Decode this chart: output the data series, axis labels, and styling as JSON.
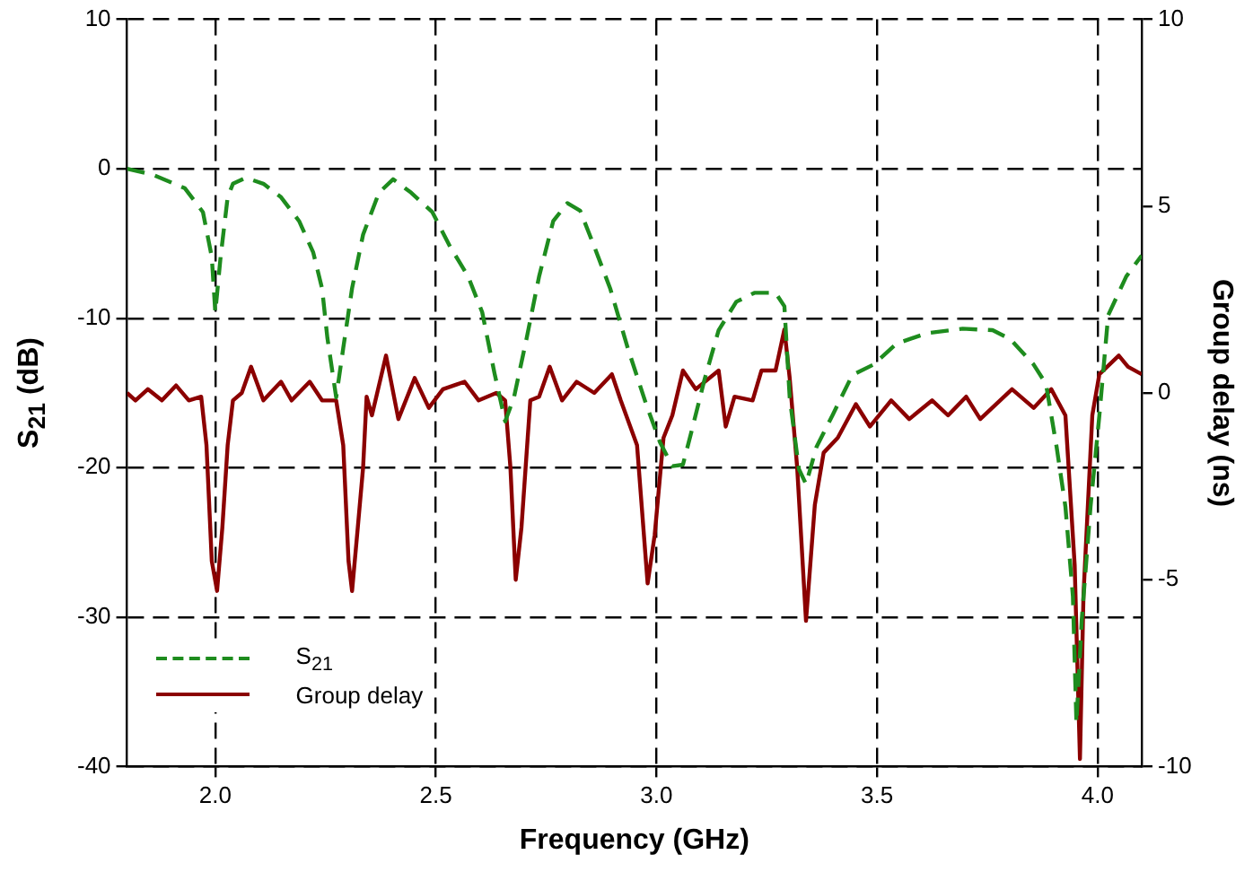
{
  "chart_data": {
    "type": "line",
    "xlabel": "Frequency (GHz)",
    "ylabel": "S$_{21}$ (dB)",
    "y2label": "Group delay (ns)",
    "xlim": [
      1.8,
      4.1
    ],
    "xticks": [
      {
        "value": 2,
        "label": "2.0"
      },
      {
        "value": 2.5,
        "label": "2.5"
      },
      {
        "value": 3,
        "label": "3.0"
      },
      {
        "value": 3.5,
        "label": "3.5"
      },
      {
        "value": 4,
        "label": "4.0"
      }
    ],
    "ylim": [
      -40,
      10
    ],
    "yticks": [
      -40,
      -30,
      -20,
      -10,
      0,
      10
    ],
    "y2lim": [
      -10,
      10
    ],
    "y2ticks": [
      -10,
      -5,
      0,
      5,
      10
    ],
    "grid": true,
    "legend": "bottom left",
    "marker": "none",
    "series": [
      {
        "name": "S$_{21}$",
        "color": "#1e8c1e",
        "line_style": "dashed",
        "x": [
          1.8,
          1.859,
          1.931,
          1.972,
          1.992,
          2.0,
          2.012,
          2.028,
          2.04,
          2.069,
          2.109,
          2.149,
          2.19,
          2.222,
          2.242,
          2.254,
          2.274,
          2.29,
          2.31,
          2.335,
          2.371,
          2.403,
          2.444,
          2.492,
          2.532,
          2.573,
          2.605,
          2.633,
          2.657,
          2.677,
          2.706,
          2.734,
          2.766,
          2.798,
          2.827,
          2.859,
          2.895,
          2.935,
          2.976,
          3.008,
          3.036,
          3.06,
          3.081,
          3.109,
          3.141,
          3.181,
          3.222,
          3.27,
          3.29,
          3.302,
          3.323,
          3.339,
          3.363,
          3.399,
          3.444,
          3.492,
          3.544,
          3.613,
          3.694,
          3.762,
          3.802,
          3.855,
          3.883,
          3.907,
          3.927,
          3.944,
          3.952,
          3.964,
          3.984,
          4.004,
          4.024,
          4.065,
          4.1
        ],
        "values": [
          0,
          -0.4,
          -1.3,
          -2.9,
          -5.9,
          -9.6,
          -5.9,
          -1.9,
          -1.0,
          -0.6,
          -1.0,
          -1.9,
          -3.5,
          -5.6,
          -8.0,
          -11.3,
          -15.3,
          -12.0,
          -8.0,
          -4.4,
          -1.6,
          -0.7,
          -1.6,
          -2.9,
          -5.2,
          -7.2,
          -9.6,
          -13.7,
          -16.9,
          -15.3,
          -11.3,
          -7.2,
          -3.5,
          -2.3,
          -2.8,
          -5.2,
          -8.0,
          -12.0,
          -15.7,
          -18.3,
          -19.9,
          -19.8,
          -17.4,
          -14.1,
          -10.8,
          -8.9,
          -8.3,
          -8.3,
          -9.2,
          -15.3,
          -20.1,
          -21.1,
          -18.6,
          -16.5,
          -13.8,
          -13.1,
          -11.7,
          -11.0,
          -10.7,
          -10.8,
          -11.4,
          -13.1,
          -14.4,
          -18.6,
          -22.6,
          -28.6,
          -37.1,
          -30.2,
          -22.6,
          -16.5,
          -9.8,
          -7.2,
          -5.8
        ]
      },
      {
        "name": "Group delay",
        "color": "#8b0000",
        "line_style": "solid",
        "axis": "y2",
        "x": [
          1.8,
          1.819,
          1.847,
          1.879,
          1.911,
          1.94,
          1.968,
          1.98,
          1.992,
          2.004,
          2.016,
          2.028,
          2.04,
          2.06,
          2.081,
          2.109,
          2.149,
          2.173,
          2.214,
          2.242,
          2.274,
          2.29,
          2.302,
          2.31,
          2.323,
          2.335,
          2.343,
          2.355,
          2.387,
          2.415,
          2.452,
          2.484,
          2.516,
          2.565,
          2.597,
          2.637,
          2.657,
          2.669,
          2.681,
          2.694,
          2.714,
          2.734,
          2.758,
          2.786,
          2.819,
          2.859,
          2.899,
          2.919,
          2.956,
          2.98,
          2.996,
          3.016,
          3.036,
          3.06,
          3.089,
          3.141,
          3.157,
          3.177,
          3.218,
          3.238,
          3.27,
          3.29,
          3.302,
          3.319,
          3.339,
          3.359,
          3.379,
          3.411,
          3.452,
          3.484,
          3.532,
          3.573,
          3.625,
          3.661,
          3.702,
          3.734,
          3.806,
          3.855,
          3.895,
          3.927,
          3.948,
          3.96,
          3.968,
          3.988,
          4.004,
          4.048,
          4.069,
          4.1
        ],
        "values": [
          0,
          -0.2,
          0.1,
          -0.2,
          0.2,
          -0.2,
          -0.1,
          -1.4,
          -4.5,
          -5.3,
          -3.6,
          -1.4,
          -0.2,
          0.0,
          0.7,
          -0.2,
          0.3,
          -0.2,
          0.3,
          -0.2,
          -0.2,
          -1.4,
          -4.5,
          -5.3,
          -3.6,
          -2.0,
          -0.1,
          -0.6,
          1.0,
          -0.7,
          0.4,
          -0.4,
          0.1,
          0.3,
          -0.2,
          0.0,
          -0.2,
          -2.0,
          -5.0,
          -3.6,
          -0.2,
          -0.1,
          0.7,
          -0.2,
          0.3,
          0.0,
          0.5,
          -0.2,
          -1.4,
          -5.1,
          -3.8,
          -1.2,
          -0.6,
          0.6,
          0.1,
          0.6,
          -0.9,
          -0.1,
          -0.2,
          0.6,
          0.6,
          1.7,
          0.4,
          -2.0,
          -6.1,
          -3.0,
          -1.6,
          -1.2,
          -0.3,
          -0.9,
          -0.2,
          -0.7,
          -0.2,
          -0.6,
          -0.1,
          -0.7,
          0.1,
          -0.4,
          0.1,
          -0.6,
          -4.6,
          -9.8,
          -5.4,
          -0.6,
          0.5,
          1.0,
          0.7,
          0.5
        ]
      }
    ]
  }
}
